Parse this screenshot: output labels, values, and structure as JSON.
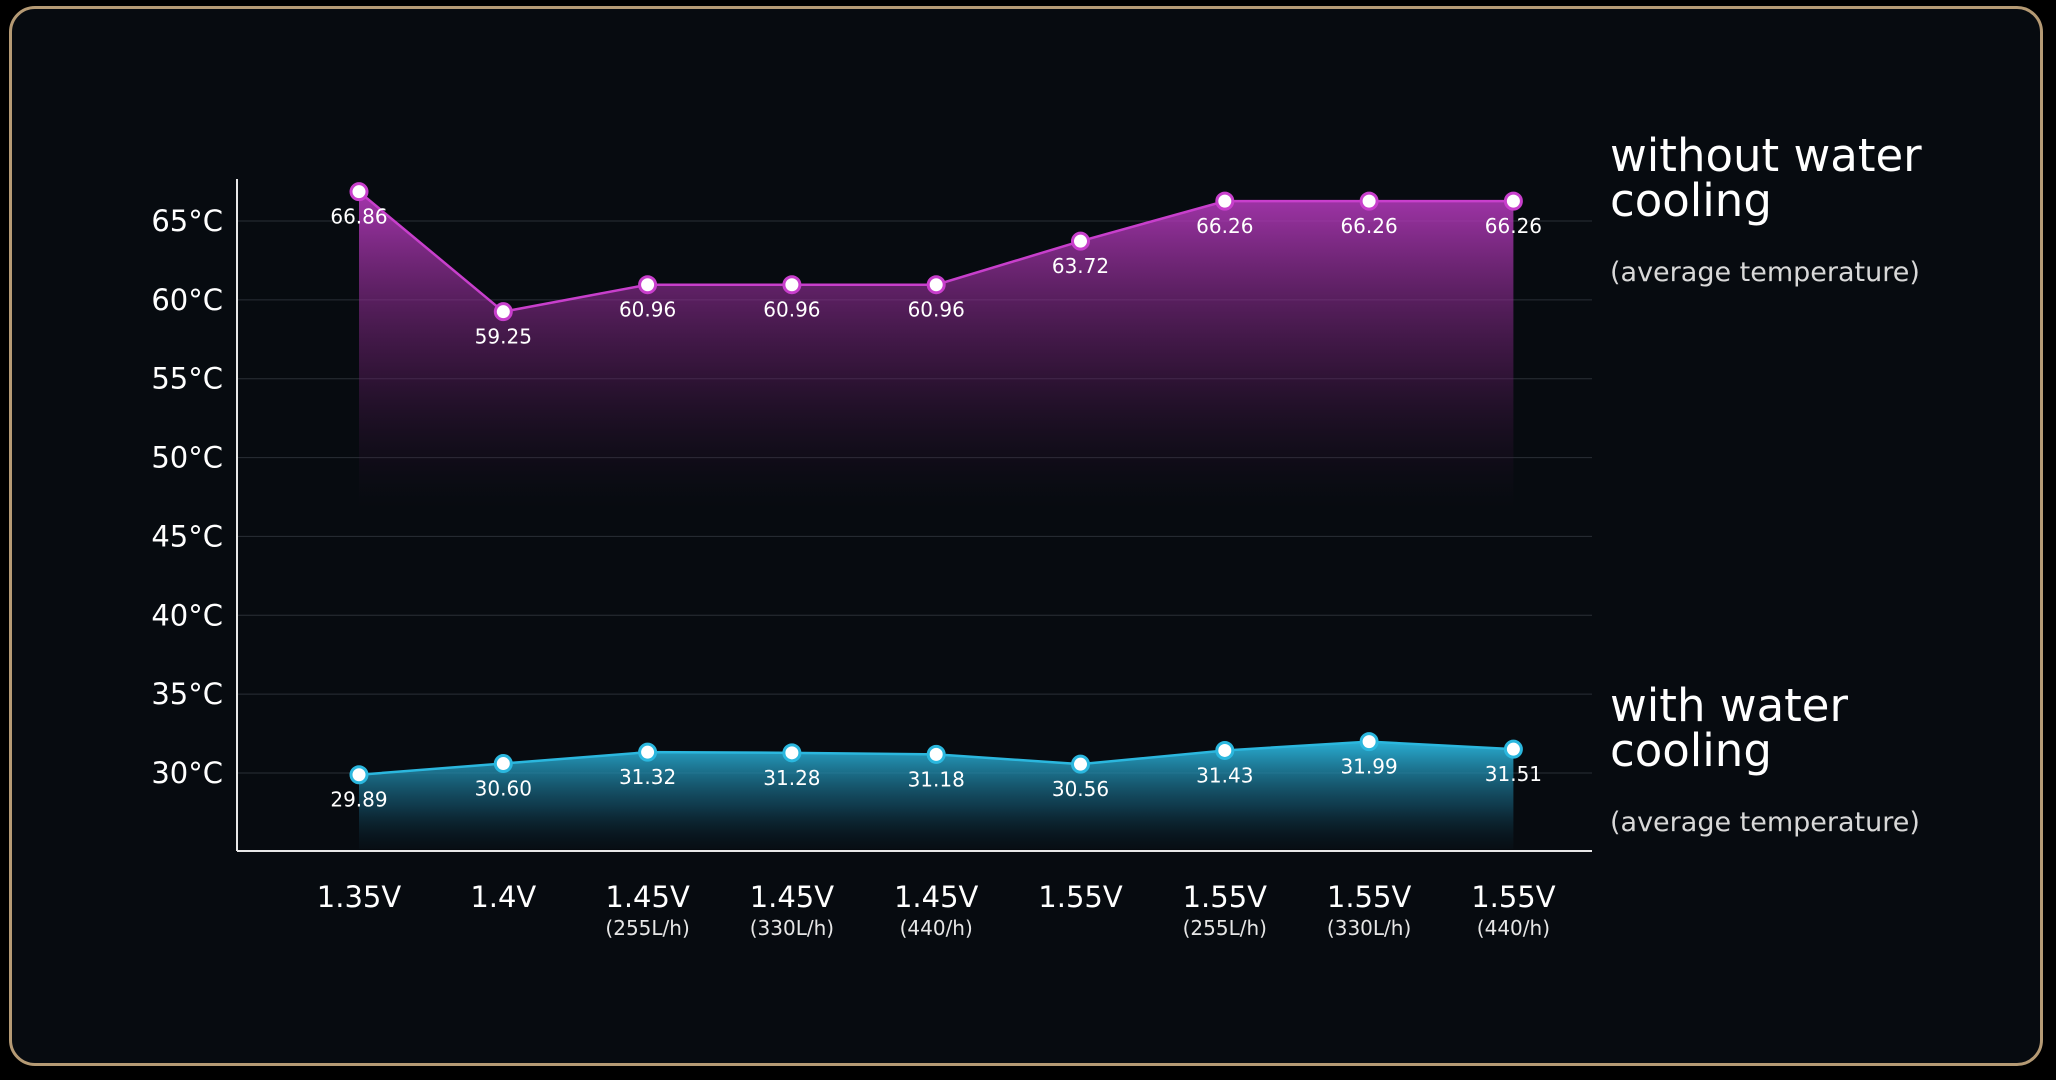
{
  "chart_data": {
    "type": "line",
    "categories": [
      {
        "label": "1.35V",
        "sub": ""
      },
      {
        "label": "1.4V",
        "sub": ""
      },
      {
        "label": "1.45V",
        "sub": "(255L/h)"
      },
      {
        "label": "1.45V",
        "sub": "(330L/h)"
      },
      {
        "label": "1.45V",
        "sub": "(440/h)"
      },
      {
        "label": "1.55V",
        "sub": ""
      },
      {
        "label": "1.55V",
        "sub": "(255L/h)"
      },
      {
        "label": "1.55V",
        "sub": "(330L/h)"
      },
      {
        "label": "1.55V",
        "sub": "(440/h)"
      }
    ],
    "series": [
      {
        "name_lines": [
          "without water",
          "cooling"
        ],
        "subtitle": "(average temperature)",
        "color": "#c83fcc",
        "values": [
          66.86,
          59.25,
          60.96,
          60.96,
          60.96,
          63.72,
          66.26,
          66.26,
          66.26
        ],
        "labels": [
          "66.86",
          "59.25",
          "60.96",
          "60.96",
          "60.96",
          "63.72",
          "66.26",
          "66.26",
          "66.26"
        ]
      },
      {
        "name_lines": [
          "with water",
          "cooling"
        ],
        "subtitle": "(average temperature)",
        "color": "#2bb7de",
        "values": [
          29.89,
          30.6,
          31.32,
          31.28,
          31.18,
          30.56,
          31.43,
          31.99,
          31.51
        ],
        "labels": [
          "29.89",
          "30.60",
          "31.32",
          "31.28",
          "31.18",
          "30.56",
          "31.43",
          "31.99",
          "31.51"
        ]
      }
    ],
    "yticks": [
      "65°C",
      "60°C",
      "55°C",
      "50°C",
      "45°C",
      "40°C",
      "35°C",
      "30°C"
    ],
    "ytick_values": [
      65,
      60,
      55,
      50,
      45,
      40,
      35,
      30
    ],
    "ylim": [
      25,
      70
    ],
    "grid": true
  }
}
